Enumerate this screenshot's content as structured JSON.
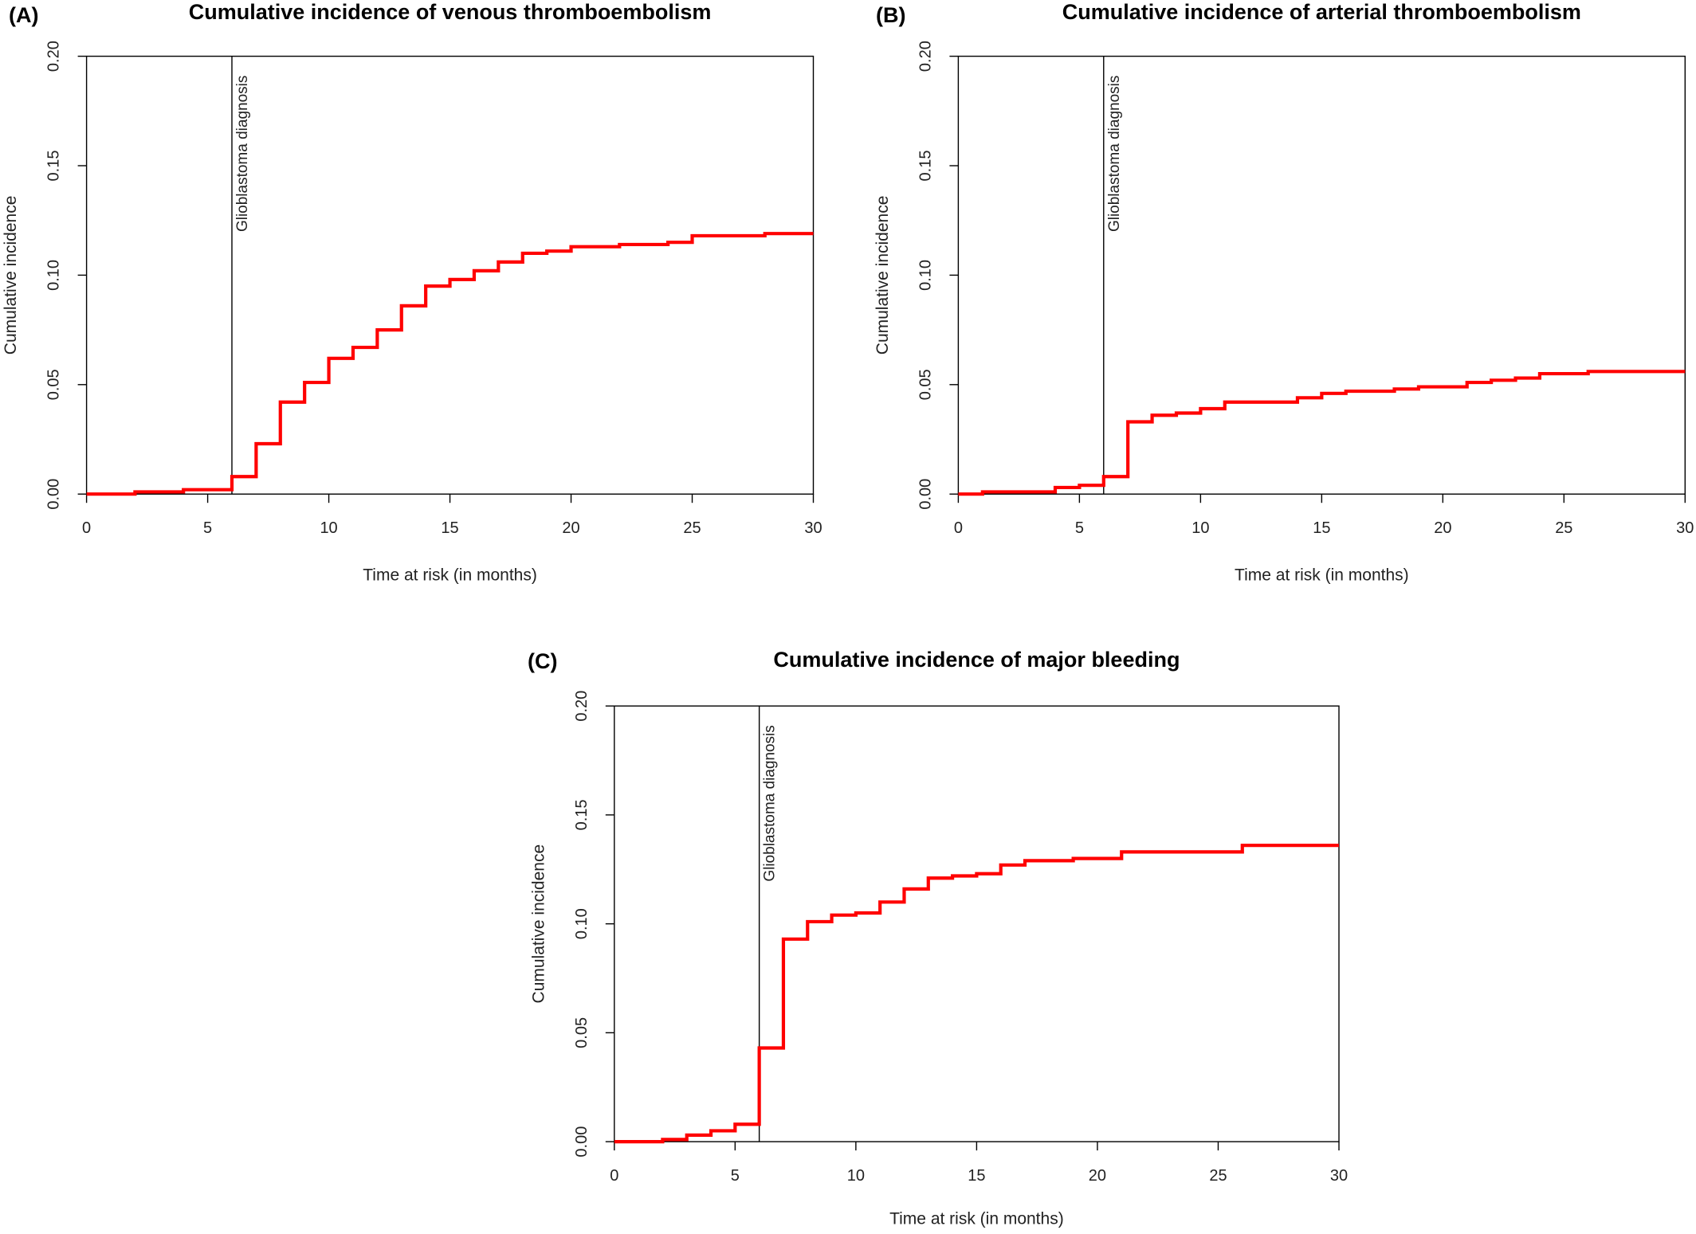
{
  "chart_data": [
    {
      "panel_label": "(A)",
      "type": "line",
      "step": true,
      "title": "Cumulative incidence of venous thromboembolism",
      "xlabel": "Time at risk (in months)",
      "ylabel": "Cumulative incidence",
      "xlim": [
        0,
        30
      ],
      "ylim": [
        0,
        0.2
      ],
      "xticks": [
        0,
        5,
        10,
        15,
        20,
        25,
        30
      ],
      "xtick_labels": [
        "0",
        "5",
        "10",
        "15",
        "20",
        "25",
        "30"
      ],
      "yticks": [
        0,
        0.05,
        0.1,
        0.15,
        0.2
      ],
      "ytick_labels": [
        "0.00",
        "0.05",
        "0.10",
        "0.15",
        "0.20"
      ],
      "grid": false,
      "legend": false,
      "annotation": {
        "x": 6,
        "label": "Glioblastoma diagnosis",
        "color": "#000000"
      },
      "series": [
        {
          "color": "#ff0000",
          "x": [
            0,
            2,
            4,
            6,
            7,
            8,
            9,
            10,
            11,
            12,
            13,
            14,
            15,
            16,
            17,
            18,
            19,
            20,
            22,
            24,
            25,
            28,
            30
          ],
          "y": [
            0,
            0.001,
            0.002,
            0.008,
            0.023,
            0.042,
            0.051,
            0.062,
            0.067,
            0.075,
            0.086,
            0.095,
            0.098,
            0.102,
            0.106,
            0.11,
            0.111,
            0.113,
            0.114,
            0.115,
            0.118,
            0.119,
            0.119
          ]
        }
      ]
    },
    {
      "panel_label": "(B)",
      "type": "line",
      "step": true,
      "title": "Cumulative incidence of arterial thromboembolism",
      "xlabel": "Time at risk (in months)",
      "ylabel": "Cumulative incidence",
      "xlim": [
        0,
        30
      ],
      "ylim": [
        0,
        0.2
      ],
      "xticks": [
        0,
        5,
        10,
        15,
        20,
        25,
        30
      ],
      "xtick_labels": [
        "0",
        "5",
        "10",
        "15",
        "20",
        "25",
        "30"
      ],
      "yticks": [
        0,
        0.05,
        0.1,
        0.15,
        0.2
      ],
      "ytick_labels": [
        "0.00",
        "0.05",
        "0.10",
        "0.15",
        "0.20"
      ],
      "grid": false,
      "legend": false,
      "annotation": {
        "x": 6,
        "label": "Glioblastoma diagnosis",
        "color": "#000000"
      },
      "series": [
        {
          "color": "#ff0000",
          "x": [
            0,
            1,
            4,
            5,
            6,
            7,
            8,
            9,
            10,
            11,
            14,
            15,
            16,
            18,
            19,
            21,
            22,
            23,
            24,
            26,
            30
          ],
          "y": [
            0,
            0.001,
            0.003,
            0.004,
            0.008,
            0.033,
            0.036,
            0.037,
            0.039,
            0.042,
            0.044,
            0.046,
            0.047,
            0.048,
            0.049,
            0.051,
            0.052,
            0.053,
            0.055,
            0.056,
            0.056
          ]
        }
      ]
    },
    {
      "panel_label": "(C)",
      "type": "line",
      "step": true,
      "title": "Cumulative incidence of major bleeding",
      "xlabel": "Time at risk (in months)",
      "ylabel": "Cumulative incidence",
      "xlim": [
        0,
        30
      ],
      "ylim": [
        0,
        0.2
      ],
      "xticks": [
        0,
        5,
        10,
        15,
        20,
        25,
        30
      ],
      "xtick_labels": [
        "0",
        "5",
        "10",
        "15",
        "20",
        "25",
        "30"
      ],
      "yticks": [
        0,
        0.05,
        0.1,
        0.15,
        0.2
      ],
      "ytick_labels": [
        "0.00",
        "0.05",
        "0.10",
        "0.15",
        "0.20"
      ],
      "grid": false,
      "legend": false,
      "annotation": {
        "x": 6,
        "label": "Glioblastoma diagnosis",
        "color": "#000000"
      },
      "series": [
        {
          "color": "#ff0000",
          "x": [
            0,
            2,
            3,
            4,
            5,
            6,
            7,
            8,
            9,
            10,
            11,
            12,
            13,
            14,
            15,
            16,
            17,
            19,
            21,
            26,
            30
          ],
          "y": [
            0,
            0.001,
            0.003,
            0.005,
            0.008,
            0.043,
            0.093,
            0.101,
            0.104,
            0.105,
            0.11,
            0.116,
            0.121,
            0.122,
            0.123,
            0.127,
            0.129,
            0.13,
            0.133,
            0.136,
            0.136
          ]
        }
      ]
    }
  ]
}
